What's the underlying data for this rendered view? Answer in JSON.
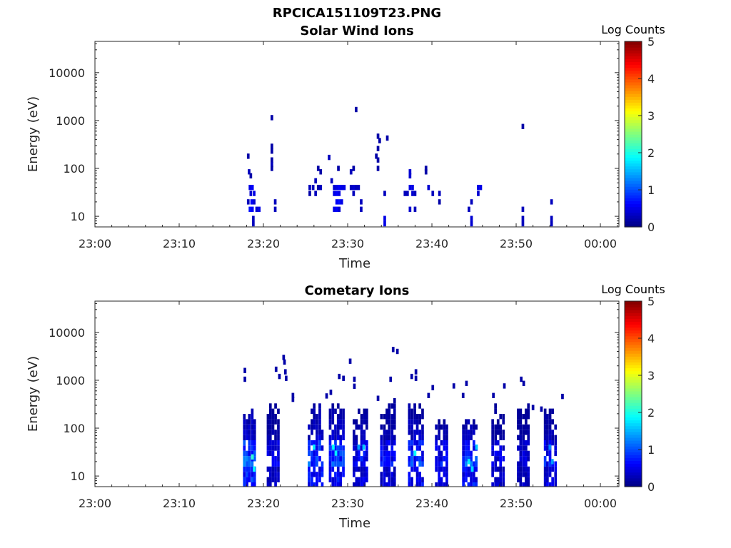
{
  "figure_title": "RPCICA151109T23.PNG",
  "chart_data": [
    {
      "type": "heatmap",
      "title": "Solar Wind Ions",
      "xlabel": "Time",
      "ylabel": "Energy (eV)",
      "x_ticks": [
        "23:00",
        "23:10",
        "23:20",
        "23:30",
        "23:40",
        "23:50",
        "00:00"
      ],
      "x_tick_minutes": [
        0,
        10,
        20,
        30,
        40,
        50,
        60
      ],
      "xlim_minutes": [
        0,
        62.2
      ],
      "y_ticks": [
        "10",
        "100",
        "1000",
        "10000"
      ],
      "y_tick_values": [
        10,
        100,
        1000,
        10000
      ],
      "ylim": [
        6,
        45000
      ],
      "y_scale": "log",
      "colorbar": {
        "label": "Log Counts",
        "range": [
          0,
          5
        ],
        "ticks": [
          "0",
          "1",
          "2",
          "3",
          "4",
          "5"
        ],
        "colormap": "jet"
      },
      "cells": [
        [
          18.2,
          180,
          0.2
        ],
        [
          18.3,
          85,
          0.3
        ],
        [
          18.5,
          70,
          0.2
        ],
        [
          18.4,
          40,
          0.5
        ],
        [
          18.7,
          40,
          0.6
        ],
        [
          18.5,
          30,
          0.4
        ],
        [
          18.9,
          30,
          0.5
        ],
        [
          18.2,
          20,
          0.3
        ],
        [
          18.6,
          20,
          0.6
        ],
        [
          18.9,
          20,
          0.4
        ],
        [
          18.4,
          14,
          0.7
        ],
        [
          18.7,
          14,
          0.6
        ],
        [
          19.2,
          14,
          0.4
        ],
        [
          19.5,
          14,
          0.5
        ],
        [
          18.8,
          9,
          0.3
        ],
        [
          18.8,
          7,
          0.3
        ],
        [
          21.0,
          1150,
          0.2
        ],
        [
          21.0,
          290,
          0.2
        ],
        [
          21.0,
          230,
          0.2
        ],
        [
          21.0,
          150,
          0.2
        ],
        [
          21.0,
          120,
          0.3
        ],
        [
          21.0,
          100,
          0.2
        ],
        [
          21.4,
          20,
          0.3
        ],
        [
          21.4,
          14,
          0.3
        ],
        [
          25.5,
          40,
          0.3
        ],
        [
          25.5,
          30,
          0.2
        ],
        [
          25.9,
          40,
          0.3
        ],
        [
          26.2,
          55,
          0.3
        ],
        [
          26.2,
          30,
          0.3
        ],
        [
          26.5,
          40,
          0.2
        ],
        [
          26.8,
          40,
          0.3
        ],
        [
          26.5,
          100,
          0.2
        ],
        [
          26.8,
          85,
          0.2
        ],
        [
          27.8,
          170,
          0.3
        ],
        [
          28.1,
          55,
          0.3
        ],
        [
          28.4,
          40,
          0.4
        ],
        [
          28.7,
          40,
          0.5
        ],
        [
          29.0,
          40,
          0.6
        ],
        [
          29.3,
          40,
          0.5
        ],
        [
          29.6,
          40,
          0.5
        ],
        [
          28.4,
          30,
          0.5
        ],
        [
          28.7,
          30,
          0.6
        ],
        [
          29.0,
          30,
          0.5
        ],
        [
          28.7,
          20,
          0.6
        ],
        [
          29.0,
          20,
          0.7
        ],
        [
          29.3,
          20,
          0.5
        ],
        [
          28.4,
          14,
          0.5
        ],
        [
          28.7,
          14,
          0.6
        ],
        [
          29.0,
          14,
          0.4
        ],
        [
          28.9,
          100,
          0.2
        ],
        [
          30.4,
          85,
          0.3
        ],
        [
          30.4,
          40,
          0.3
        ],
        [
          30.7,
          40,
          0.4
        ],
        [
          31.0,
          40,
          0.3
        ],
        [
          30.7,
          30,
          0.3
        ],
        [
          31.3,
          40,
          0.3
        ],
        [
          31.6,
          20,
          0.3
        ],
        [
          31.6,
          14,
          0.3
        ],
        [
          31.0,
          1700,
          0.2
        ],
        [
          30.7,
          100,
          0.2
        ],
        [
          33.6,
          470,
          0.2
        ],
        [
          33.8,
          380,
          0.2
        ],
        [
          33.6,
          260,
          0.2
        ],
        [
          33.4,
          180,
          0.2
        ],
        [
          33.6,
          150,
          0.2
        ],
        [
          33.6,
          100,
          0.2
        ],
        [
          34.7,
          430,
          0.2
        ],
        [
          34.4,
          30,
          0.3
        ],
        [
          34.4,
          9,
          0.5
        ],
        [
          34.4,
          7,
          0.5
        ],
        [
          36.8,
          30,
          0.3
        ],
        [
          37.4,
          85,
          0.4
        ],
        [
          37.4,
          70,
          0.4
        ],
        [
          37.1,
          30,
          0.3
        ],
        [
          37.4,
          40,
          0.5
        ],
        [
          37.7,
          40,
          0.5
        ],
        [
          37.7,
          30,
          0.4
        ],
        [
          38.0,
          30,
          0.3
        ],
        [
          37.4,
          14,
          0.4
        ],
        [
          38.0,
          14,
          0.3
        ],
        [
          39.3,
          100,
          0.2
        ],
        [
          39.3,
          85,
          0.2
        ],
        [
          39.6,
          40,
          0.4
        ],
        [
          40.1,
          30,
          0.3
        ],
        [
          40.9,
          30,
          0.3
        ],
        [
          40.9,
          20,
          0.2
        ],
        [
          44.4,
          14,
          0.3
        ],
        [
          44.7,
          20,
          0.3
        ],
        [
          44.7,
          9,
          0.4
        ],
        [
          44.7,
          7,
          0.4
        ],
        [
          45.5,
          40,
          0.5
        ],
        [
          45.8,
          40,
          0.5
        ],
        [
          45.5,
          30,
          0.4
        ],
        [
          50.8,
          750,
          0.2
        ],
        [
          50.8,
          14,
          0.3
        ],
        [
          50.8,
          9,
          0.3
        ],
        [
          50.8,
          7,
          0.3
        ],
        [
          54.2,
          20,
          0.3
        ],
        [
          54.2,
          9,
          0.3
        ],
        [
          54.2,
          7,
          0.3
        ]
      ]
    },
    {
      "type": "heatmap",
      "title": "Cometary Ions",
      "xlabel": "Time",
      "ylabel": "Energy (eV)",
      "x_ticks": [
        "23:00",
        "23:10",
        "23:20",
        "23:30",
        "23:40",
        "23:50",
        "00:00"
      ],
      "x_tick_minutes": [
        0,
        10,
        20,
        30,
        40,
        50,
        60
      ],
      "xlim_minutes": [
        0,
        62.2
      ],
      "y_ticks": [
        "10",
        "100",
        "1000",
        "10000"
      ],
      "y_tick_values": [
        10,
        100,
        1000,
        10000
      ],
      "ylim": [
        6,
        45000
      ],
      "y_scale": "log",
      "colorbar": {
        "label": "Log Counts",
        "range": [
          0,
          5
        ],
        "ticks": [
          "0",
          "1",
          "2",
          "3",
          "4",
          "5"
        ],
        "colormap": "jet"
      },
      "bursts": [
        {
          "t": 18.5,
          "w": 1.6,
          "top": 350,
          "peak": 2.0
        },
        {
          "t": 21.3,
          "w": 1.6,
          "top": 350,
          "peak": 0.9
        },
        {
          "t": 26.3,
          "w": 1.8,
          "top": 350,
          "peak": 1.7
        },
        {
          "t": 28.8,
          "w": 1.8,
          "top": 380,
          "peak": 1.6
        },
        {
          "t": 31.6,
          "w": 1.8,
          "top": 300,
          "peak": 1.2
        },
        {
          "t": 35.0,
          "w": 2.0,
          "top": 420,
          "peak": 1.1
        },
        {
          "t": 38.2,
          "w": 1.8,
          "top": 400,
          "peak": 1.5
        },
        {
          "t": 41.3,
          "w": 1.6,
          "top": 240,
          "peak": 1.2
        },
        {
          "t": 44.6,
          "w": 1.8,
          "top": 240,
          "peak": 1.7
        },
        {
          "t": 48.0,
          "w": 1.6,
          "top": 330,
          "peak": 0.9
        },
        {
          "t": 51.0,
          "w": 1.6,
          "top": 330,
          "peak": 0.8
        },
        {
          "t": 54.2,
          "w": 1.6,
          "top": 320,
          "peak": 1.2
        }
      ],
      "cells": [
        [
          17.8,
          1600,
          0.2
        ],
        [
          17.8,
          1050,
          0.2
        ],
        [
          21.5,
          1700,
          0.2
        ],
        [
          21.9,
          1200,
          0.2
        ],
        [
          22.4,
          3000,
          0.2
        ],
        [
          22.5,
          2400,
          0.2
        ],
        [
          22.6,
          1500,
          0.2
        ],
        [
          22.7,
          1100,
          0.2
        ],
        [
          23.5,
          480,
          0.2
        ],
        [
          23.5,
          400,
          0.2
        ],
        [
          27.5,
          470,
          0.2
        ],
        [
          28.0,
          560,
          0.2
        ],
        [
          29.0,
          1200,
          0.2
        ],
        [
          29.5,
          1100,
          0.2
        ],
        [
          30.3,
          2500,
          0.2
        ],
        [
          30.8,
          1050,
          0.2
        ],
        [
          30.8,
          750,
          0.2
        ],
        [
          33.6,
          420,
          0.2
        ],
        [
          35.4,
          4400,
          0.2
        ],
        [
          35.9,
          4000,
          0.2
        ],
        [
          35.1,
          1050,
          0.2
        ],
        [
          37.6,
          1200,
          0.2
        ],
        [
          38.1,
          1500,
          0.2
        ],
        [
          38.1,
          1100,
          0.2
        ],
        [
          39.6,
          480,
          0.2
        ],
        [
          40.1,
          700,
          0.2
        ],
        [
          42.6,
          760,
          0.2
        ],
        [
          44.1,
          860,
          0.2
        ],
        [
          43.7,
          480,
          0.2
        ],
        [
          47.3,
          480,
          0.2
        ],
        [
          48.6,
          760,
          0.2
        ],
        [
          50.6,
          1050,
          0.2
        ],
        [
          50.9,
          860,
          0.2
        ],
        [
          52.0,
          270,
          0.2
        ],
        [
          53.0,
          250,
          0.2
        ],
        [
          55.5,
          460,
          0.2
        ],
        [
          28.3,
          40,
          1.9
        ],
        [
          28.6,
          30,
          1.8
        ],
        [
          31.3,
          40,
          1.4
        ],
        [
          31.9,
          40,
          1.6
        ],
        [
          26.0,
          40,
          1.8
        ],
        [
          18.7,
          25,
          2.1
        ],
        [
          18.9,
          14,
          1.9
        ],
        [
          38.0,
          30,
          1.9
        ],
        [
          44.4,
          20,
          1.8
        ],
        [
          44.8,
          14,
          1.7
        ],
        [
          45.3,
          40,
          1.6
        ],
        [
          54.0,
          40,
          1.3
        ],
        [
          54.3,
          20,
          1.4
        ]
      ]
    }
  ]
}
